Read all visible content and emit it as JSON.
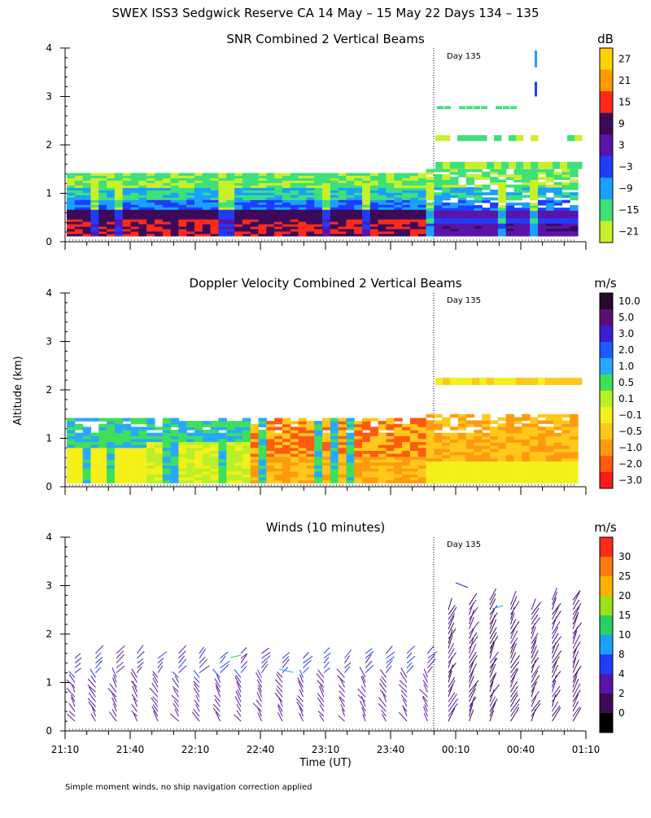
{
  "title": "SWEX ISS3 Sedgwick Reserve CA  14 May – 15 May 22 Days 134 – 135",
  "ylabel": "Altitude (km)",
  "xlabel": "Time (UT)",
  "footnote": "Simple moment winds, no ship navigation correction applied",
  "chart_data": [
    {
      "type": "heatmap",
      "title": "SNR Combined 2 Vertical Beams",
      "unit": "dB",
      "day_marker": "Day 135",
      "ylim": [
        0,
        4
      ],
      "y_ticks": [
        "0",
        "1",
        "2",
        "3",
        "4"
      ],
      "x_ticks": [
        "21:10",
        "21:40",
        "22:10",
        "22:40",
        "23:10",
        "23:40",
        "00:10",
        "00:40",
        "01:10"
      ],
      "colorbar": {
        "labels": [
          "27",
          "21",
          "15",
          "9",
          "3",
          "−3",
          "−9",
          "−15",
          "−21"
        ],
        "colors": [
          "#ffd400",
          "#ff9a00",
          "#ff2a1a",
          "#3b0b5a",
          "#5a14a8",
          "#1f3cff",
          "#1aa0ff",
          "#3ee07a",
          "#c8f02a"
        ]
      }
    },
    {
      "type": "heatmap",
      "title": "Doppler Velocity Combined 2 Vertical Beams",
      "unit": "m/s",
      "day_marker": "Day 135",
      "ylim": [
        0,
        4
      ],
      "y_ticks": [
        "0",
        "1",
        "2",
        "3",
        "4"
      ],
      "colorbar": {
        "labels": [
          "10.0",
          "5.0",
          "3.0",
          "2.0",
          "1.0",
          "0.5",
          "0.1",
          "−0.1",
          "−0.5",
          "−1.0",
          "−2.0",
          "−3.0"
        ],
        "colors": [
          "#250a2a",
          "#5a1070",
          "#3a1fd0",
          "#1f5aff",
          "#2aa8ff",
          "#3ee05a",
          "#b8f02a",
          "#f4f018",
          "#ffc81a",
          "#ff9a10",
          "#ff5a10",
          "#ff1a1a"
        ]
      }
    },
    {
      "type": "wind_barbs",
      "title": "Winds (10 minutes)",
      "unit": "m/s",
      "day_marker": "Day 135",
      "ylim": [
        0,
        4
      ],
      "y_ticks": [
        "0",
        "1",
        "2",
        "3",
        "4"
      ],
      "colorbar": {
        "labels": [
          "30",
          "25",
          "20",
          "15",
          "10",
          "8",
          "4",
          "2",
          "0"
        ],
        "colors": [
          "#ff2a1a",
          "#ff7a10",
          "#ffb000",
          "#9ee01a",
          "#2ad060",
          "#1aa0ff",
          "#1f3cff",
          "#5a14a8",
          "#3b0b5a",
          "#000000"
        ]
      }
    }
  ]
}
